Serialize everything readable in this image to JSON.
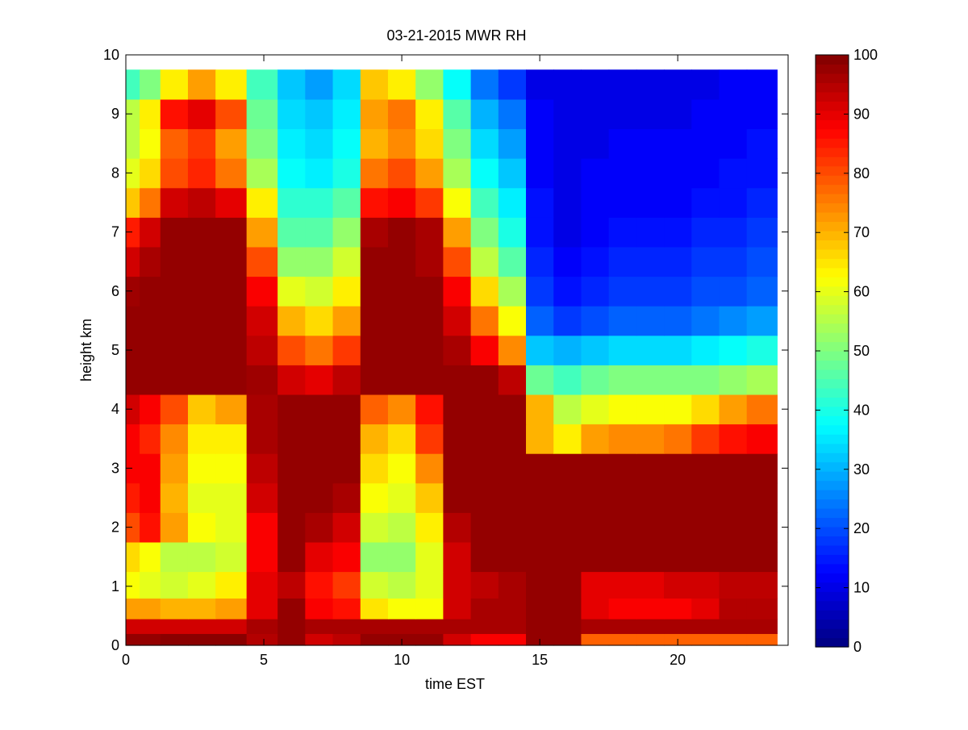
{
  "chart_data": {
    "type": "heatmap",
    "title": "03-21-2015 MWR RH",
    "xlabel": "time EST",
    "ylabel": "height km",
    "xlim": [
      0,
      24
    ],
    "ylim": [
      0,
      10
    ],
    "x_ticks": [
      0,
      5,
      10,
      15,
      20
    ],
    "y_ticks": [
      0,
      1,
      2,
      3,
      4,
      5,
      6,
      7,
      8,
      9,
      10
    ],
    "colorbar": {
      "range": [
        0,
        100
      ],
      "ticks": [
        0,
        10,
        20,
        30,
        40,
        50,
        60,
        70,
        80,
        90,
        100
      ],
      "colormap": "jet",
      "placement": "right"
    },
    "x": [
      0.25,
      0.75,
      1.75,
      2.75,
      3.75,
      5.0,
      6.0,
      7.0,
      8.0,
      9.0,
      10.0,
      11.0,
      12.0,
      13.0,
      14.0,
      15.0,
      16.0,
      17.0,
      18.0,
      19.0,
      20.0,
      21.0,
      22.0,
      23.0
    ],
    "y": [
      0.1,
      0.3,
      0.6,
      1.0,
      1.5,
      2.0,
      2.5,
      3.0,
      3.5,
      4.0,
      4.5,
      5.0,
      5.5,
      6.0,
      6.5,
      7.0,
      7.5,
      8.0,
      8.5,
      9.0,
      9.5
    ],
    "z": [
      [
        98,
        98,
        99,
        99,
        99,
        95,
        98,
        92,
        94,
        98,
        98,
        98,
        92,
        88,
        88,
        98,
        98,
        78,
        78,
        78,
        78,
        78,
        78,
        78
      ],
      [
        92,
        92,
        92,
        92,
        92,
        96,
        98,
        96,
        96,
        96,
        96,
        96,
        96,
        96,
        96,
        98,
        98,
        96,
        96,
        96,
        96,
        96,
        96,
        96
      ],
      [
        72,
        72,
        70,
        70,
        72,
        90,
        98,
        88,
        86,
        65,
        62,
        62,
        92,
        96,
        96,
        98,
        98,
        90,
        88,
        88,
        88,
        90,
        95,
        95
      ],
      [
        62,
        60,
        58,
        60,
        64,
        90,
        94,
        86,
        82,
        58,
        56,
        60,
        92,
        94,
        96,
        98,
        98,
        90,
        90,
        90,
        92,
        92,
        94,
        94
      ],
      [
        66,
        62,
        56,
        56,
        58,
        88,
        98,
        90,
        88,
        52,
        52,
        60,
        92,
        98,
        98,
        98,
        98,
        98,
        98,
        98,
        98,
        98,
        98,
        98
      ],
      [
        80,
        86,
        72,
        62,
        60,
        88,
        98,
        96,
        92,
        58,
        56,
        64,
        95,
        98,
        98,
        98,
        98,
        98,
        98,
        98,
        98,
        98,
        98,
        98
      ],
      [
        85,
        88,
        70,
        60,
        60,
        92,
        98,
        98,
        96,
        62,
        60,
        68,
        98,
        98,
        98,
        98,
        98,
        98,
        98,
        98,
        98,
        98,
        98,
        98
      ],
      [
        88,
        88,
        72,
        62,
        62,
        94,
        98,
        98,
        98,
        66,
        62,
        74,
        98,
        98,
        98,
        98,
        98,
        98,
        98,
        98,
        98,
        98,
        98,
        98
      ],
      [
        88,
        84,
        74,
        64,
        64,
        96,
        98,
        98,
        98,
        70,
        66,
        82,
        98,
        98,
        98,
        70,
        64,
        72,
        74,
        74,
        76,
        82,
        86,
        88
      ],
      [
        92,
        88,
        80,
        68,
        72,
        96,
        98,
        98,
        98,
        78,
        74,
        86,
        98,
        98,
        98,
        70,
        56,
        60,
        62,
        62,
        62,
        66,
        72,
        76
      ],
      [
        98,
        98,
        98,
        98,
        98,
        97,
        92,
        90,
        94,
        98,
        98,
        98,
        98,
        98,
        94,
        48,
        44,
        48,
        50,
        50,
        50,
        50,
        52,
        54
      ],
      [
        98,
        98,
        98,
        98,
        98,
        94,
        80,
        76,
        82,
        98,
        98,
        98,
        96,
        88,
        74,
        32,
        30,
        32,
        34,
        34,
        34,
        36,
        38,
        40
      ],
      [
        98,
        98,
        98,
        98,
        98,
        92,
        70,
        66,
        72,
        98,
        98,
        98,
        92,
        76,
        62,
        22,
        18,
        20,
        22,
        22,
        22,
        24,
        26,
        28
      ],
      [
        97,
        98,
        98,
        98,
        98,
        88,
        60,
        58,
        64,
        98,
        98,
        98,
        88,
        66,
        54,
        18,
        14,
        16,
        18,
        18,
        18,
        20,
        20,
        22
      ],
      [
        92,
        96,
        98,
        98,
        98,
        80,
        52,
        52,
        58,
        98,
        98,
        96,
        80,
        56,
        46,
        16,
        12,
        14,
        16,
        16,
        16,
        18,
        18,
        20
      ],
      [
        85,
        92,
        98,
        98,
        98,
        72,
        46,
        46,
        52,
        96,
        98,
        96,
        72,
        50,
        40,
        14,
        10,
        12,
        14,
        14,
        14,
        16,
        16,
        18
      ],
      [
        68,
        76,
        92,
        94,
        90,
        64,
        42,
        42,
        46,
        86,
        88,
        82,
        62,
        44,
        36,
        14,
        10,
        12,
        12,
        12,
        12,
        14,
        14,
        16
      ],
      [
        60,
        66,
        80,
        84,
        76,
        54,
        38,
        36,
        40,
        76,
        80,
        72,
        54,
        38,
        32,
        12,
        10,
        12,
        12,
        12,
        12,
        12,
        14,
        14
      ],
      [
        56,
        62,
        78,
        82,
        72,
        50,
        36,
        34,
        38,
        70,
        74,
        66,
        50,
        34,
        28,
        12,
        10,
        10,
        12,
        12,
        12,
        12,
        12,
        14
      ],
      [
        56,
        64,
        86,
        90,
        80,
        48,
        34,
        32,
        36,
        72,
        76,
        64,
        46,
        30,
        24,
        12,
        10,
        10,
        10,
        10,
        10,
        12,
        12,
        12
      ],
      [
        44,
        50,
        64,
        72,
        64,
        44,
        32,
        28,
        34,
        68,
        64,
        52,
        38,
        24,
        18,
        10,
        10,
        10,
        10,
        10,
        10,
        10,
        12,
        12
      ]
    ]
  }
}
